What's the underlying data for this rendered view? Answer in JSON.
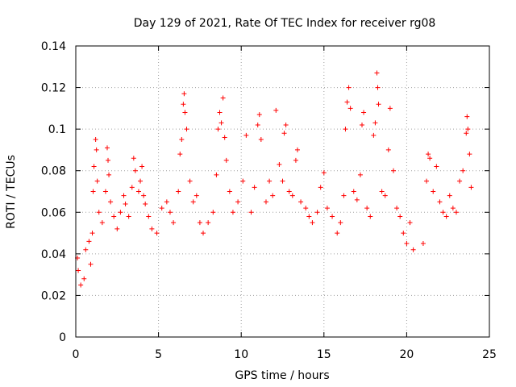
{
  "chart_data": {
    "type": "scatter",
    "title": "Day 129 of 2021, Rate Of TEC Index for receiver rg08",
    "xlabel": "GPS time / hours",
    "ylabel": "ROTI / TECUs",
    "xlim": [
      0,
      25
    ],
    "ylim": [
      0,
      0.14
    ],
    "x_ticks": [
      "0",
      "5",
      "10",
      "15",
      "20",
      "25"
    ],
    "y_ticks": [
      "0",
      "0.02",
      "0.04",
      "0.06",
      "0.08",
      "0.1",
      "0.12",
      "0.14"
    ],
    "grid": true,
    "marker": "+",
    "color": "#ff0000",
    "series": [
      {
        "points": [
          [
            0.1,
            0.038
          ],
          [
            0.15,
            0.032
          ],
          [
            0.3,
            0.025
          ],
          [
            0.5,
            0.028
          ],
          [
            0.6,
            0.042
          ],
          [
            0.8,
            0.046
          ],
          [
            0.9,
            0.035
          ],
          [
            1.0,
            0.05
          ],
          [
            1.05,
            0.07
          ],
          [
            1.1,
            0.082
          ],
          [
            1.2,
            0.095
          ],
          [
            1.25,
            0.09
          ],
          [
            1.3,
            0.075
          ],
          [
            1.4,
            0.06
          ],
          [
            1.6,
            0.055
          ],
          [
            1.8,
            0.07
          ],
          [
            1.9,
            0.091
          ],
          [
            1.95,
            0.085
          ],
          [
            2.0,
            0.078
          ],
          [
            2.1,
            0.065
          ],
          [
            2.3,
            0.058
          ],
          [
            2.5,
            0.052
          ],
          [
            2.7,
            0.06
          ],
          [
            2.9,
            0.068
          ],
          [
            3.0,
            0.064
          ],
          [
            3.2,
            0.058
          ],
          [
            3.4,
            0.072
          ],
          [
            3.5,
            0.086
          ],
          [
            3.6,
            0.08
          ],
          [
            3.8,
            0.07
          ],
          [
            3.9,
            0.075
          ],
          [
            4.0,
            0.082
          ],
          [
            4.1,
            0.068
          ],
          [
            4.2,
            0.064
          ],
          [
            4.4,
            0.058
          ],
          [
            4.6,
            0.052
          ],
          [
            4.9,
            0.05
          ],
          [
            5.2,
            0.062
          ],
          [
            5.5,
            0.065
          ],
          [
            5.7,
            0.06
          ],
          [
            5.9,
            0.055
          ],
          [
            6.2,
            0.07
          ],
          [
            6.3,
            0.088
          ],
          [
            6.4,
            0.095
          ],
          [
            6.5,
            0.112
          ],
          [
            6.55,
            0.117
          ],
          [
            6.6,
            0.108
          ],
          [
            6.7,
            0.1
          ],
          [
            6.9,
            0.075
          ],
          [
            7.1,
            0.065
          ],
          [
            7.3,
            0.068
          ],
          [
            7.5,
            0.055
          ],
          [
            7.7,
            0.05
          ],
          [
            8.0,
            0.055
          ],
          [
            8.3,
            0.06
          ],
          [
            8.5,
            0.078
          ],
          [
            8.6,
            0.1
          ],
          [
            8.7,
            0.108
          ],
          [
            8.8,
            0.103
          ],
          [
            8.9,
            0.115
          ],
          [
            9.0,
            0.096
          ],
          [
            9.1,
            0.085
          ],
          [
            9.3,
            0.07
          ],
          [
            9.5,
            0.06
          ],
          [
            9.8,
            0.065
          ],
          [
            10.1,
            0.075
          ],
          [
            10.3,
            0.097
          ],
          [
            10.6,
            0.06
          ],
          [
            10.8,
            0.072
          ],
          [
            11.0,
            0.102
          ],
          [
            11.1,
            0.107
          ],
          [
            11.2,
            0.095
          ],
          [
            11.5,
            0.065
          ],
          [
            11.7,
            0.075
          ],
          [
            11.9,
            0.068
          ],
          [
            12.1,
            0.109
          ],
          [
            12.3,
            0.083
          ],
          [
            12.5,
            0.075
          ],
          [
            12.6,
            0.098
          ],
          [
            12.7,
            0.102
          ],
          [
            12.9,
            0.07
          ],
          [
            13.1,
            0.068
          ],
          [
            13.3,
            0.085
          ],
          [
            13.4,
            0.09
          ],
          [
            13.6,
            0.065
          ],
          [
            13.9,
            0.062
          ],
          [
            14.1,
            0.058
          ],
          [
            14.3,
            0.055
          ],
          [
            14.6,
            0.06
          ],
          [
            14.8,
            0.072
          ],
          [
            15.0,
            0.079
          ],
          [
            15.2,
            0.062
          ],
          [
            15.5,
            0.058
          ],
          [
            15.8,
            0.05
          ],
          [
            16.0,
            0.055
          ],
          [
            16.2,
            0.068
          ],
          [
            16.3,
            0.1
          ],
          [
            16.4,
            0.113
          ],
          [
            16.5,
            0.12
          ],
          [
            16.6,
            0.11
          ],
          [
            16.8,
            0.07
          ],
          [
            17.0,
            0.066
          ],
          [
            17.2,
            0.078
          ],
          [
            17.3,
            0.102
          ],
          [
            17.4,
            0.108
          ],
          [
            17.6,
            0.062
          ],
          [
            17.8,
            0.058
          ],
          [
            18.0,
            0.097
          ],
          [
            18.1,
            0.103
          ],
          [
            18.2,
            0.127
          ],
          [
            18.25,
            0.12
          ],
          [
            18.3,
            0.112
          ],
          [
            18.5,
            0.07
          ],
          [
            18.7,
            0.068
          ],
          [
            18.9,
            0.09
          ],
          [
            19.0,
            0.11
          ],
          [
            19.2,
            0.08
          ],
          [
            19.4,
            0.062
          ],
          [
            19.6,
            0.058
          ],
          [
            19.8,
            0.05
          ],
          [
            20.0,
            0.045
          ],
          [
            20.2,
            0.055
          ],
          [
            20.4,
            0.042
          ],
          [
            21.0,
            0.045
          ],
          [
            21.2,
            0.075
          ],
          [
            21.3,
            0.088
          ],
          [
            21.4,
            0.086
          ],
          [
            21.6,
            0.07
          ],
          [
            21.8,
            0.082
          ],
          [
            22.0,
            0.065
          ],
          [
            22.2,
            0.06
          ],
          [
            22.4,
            0.058
          ],
          [
            22.6,
            0.068
          ],
          [
            22.8,
            0.062
          ],
          [
            23.0,
            0.06
          ],
          [
            23.2,
            0.075
          ],
          [
            23.4,
            0.08
          ],
          [
            23.6,
            0.098
          ],
          [
            23.65,
            0.106
          ],
          [
            23.7,
            0.1
          ],
          [
            23.8,
            0.088
          ],
          [
            23.9,
            0.072
          ]
        ]
      }
    ]
  }
}
